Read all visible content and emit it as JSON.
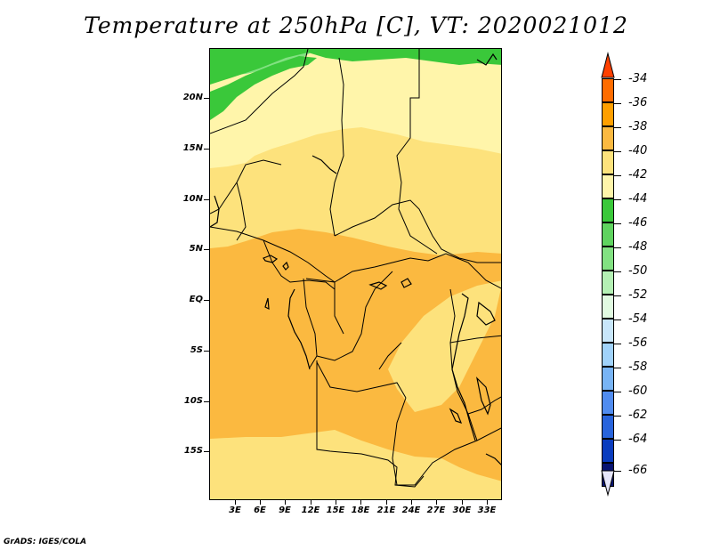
{
  "title": "Temperature at 250hPa [C], VT: 2020021012",
  "credit": "GrADS: IGES/COLA",
  "map": {
    "lat_labels": [
      "20N",
      "15N",
      "10N",
      "5N",
      "EQ",
      "5S",
      "10S",
      "15S"
    ],
    "lon_labels": [
      "3E",
      "6E",
      "9E",
      "12E",
      "15E",
      "18E",
      "21E",
      "24E",
      "27E",
      "30E",
      "33E"
    ],
    "colors": {
      "green": "#3ac83a",
      "lightgreen": "#82e182",
      "pale": "#fff5aa",
      "lightorange": "#fde27c",
      "orange": "#fbb940"
    }
  },
  "colorbar": {
    "labels": [
      "-34",
      "-36",
      "-38",
      "-40",
      "-42",
      "-44",
      "-46",
      "-48",
      "-50",
      "-52",
      "-54",
      "-56",
      "-58",
      "-60",
      "-62",
      "-64",
      "-66"
    ],
    "top_color": "#ff4000",
    "bottom_color": "#e6e6fa",
    "boxes": [
      "#ff6c00",
      "#ff9f00",
      "#fbb940",
      "#fde27c",
      "#fff5aa",
      "#3ac83a",
      "#5fd35f",
      "#82e182",
      "#b4f0b4",
      "#e1fae1",
      "#c8e6fa",
      "#a0d2fa",
      "#78b4f5",
      "#508cf0",
      "#2864dc",
      "#0a3cbe",
      "#081472"
    ]
  }
}
